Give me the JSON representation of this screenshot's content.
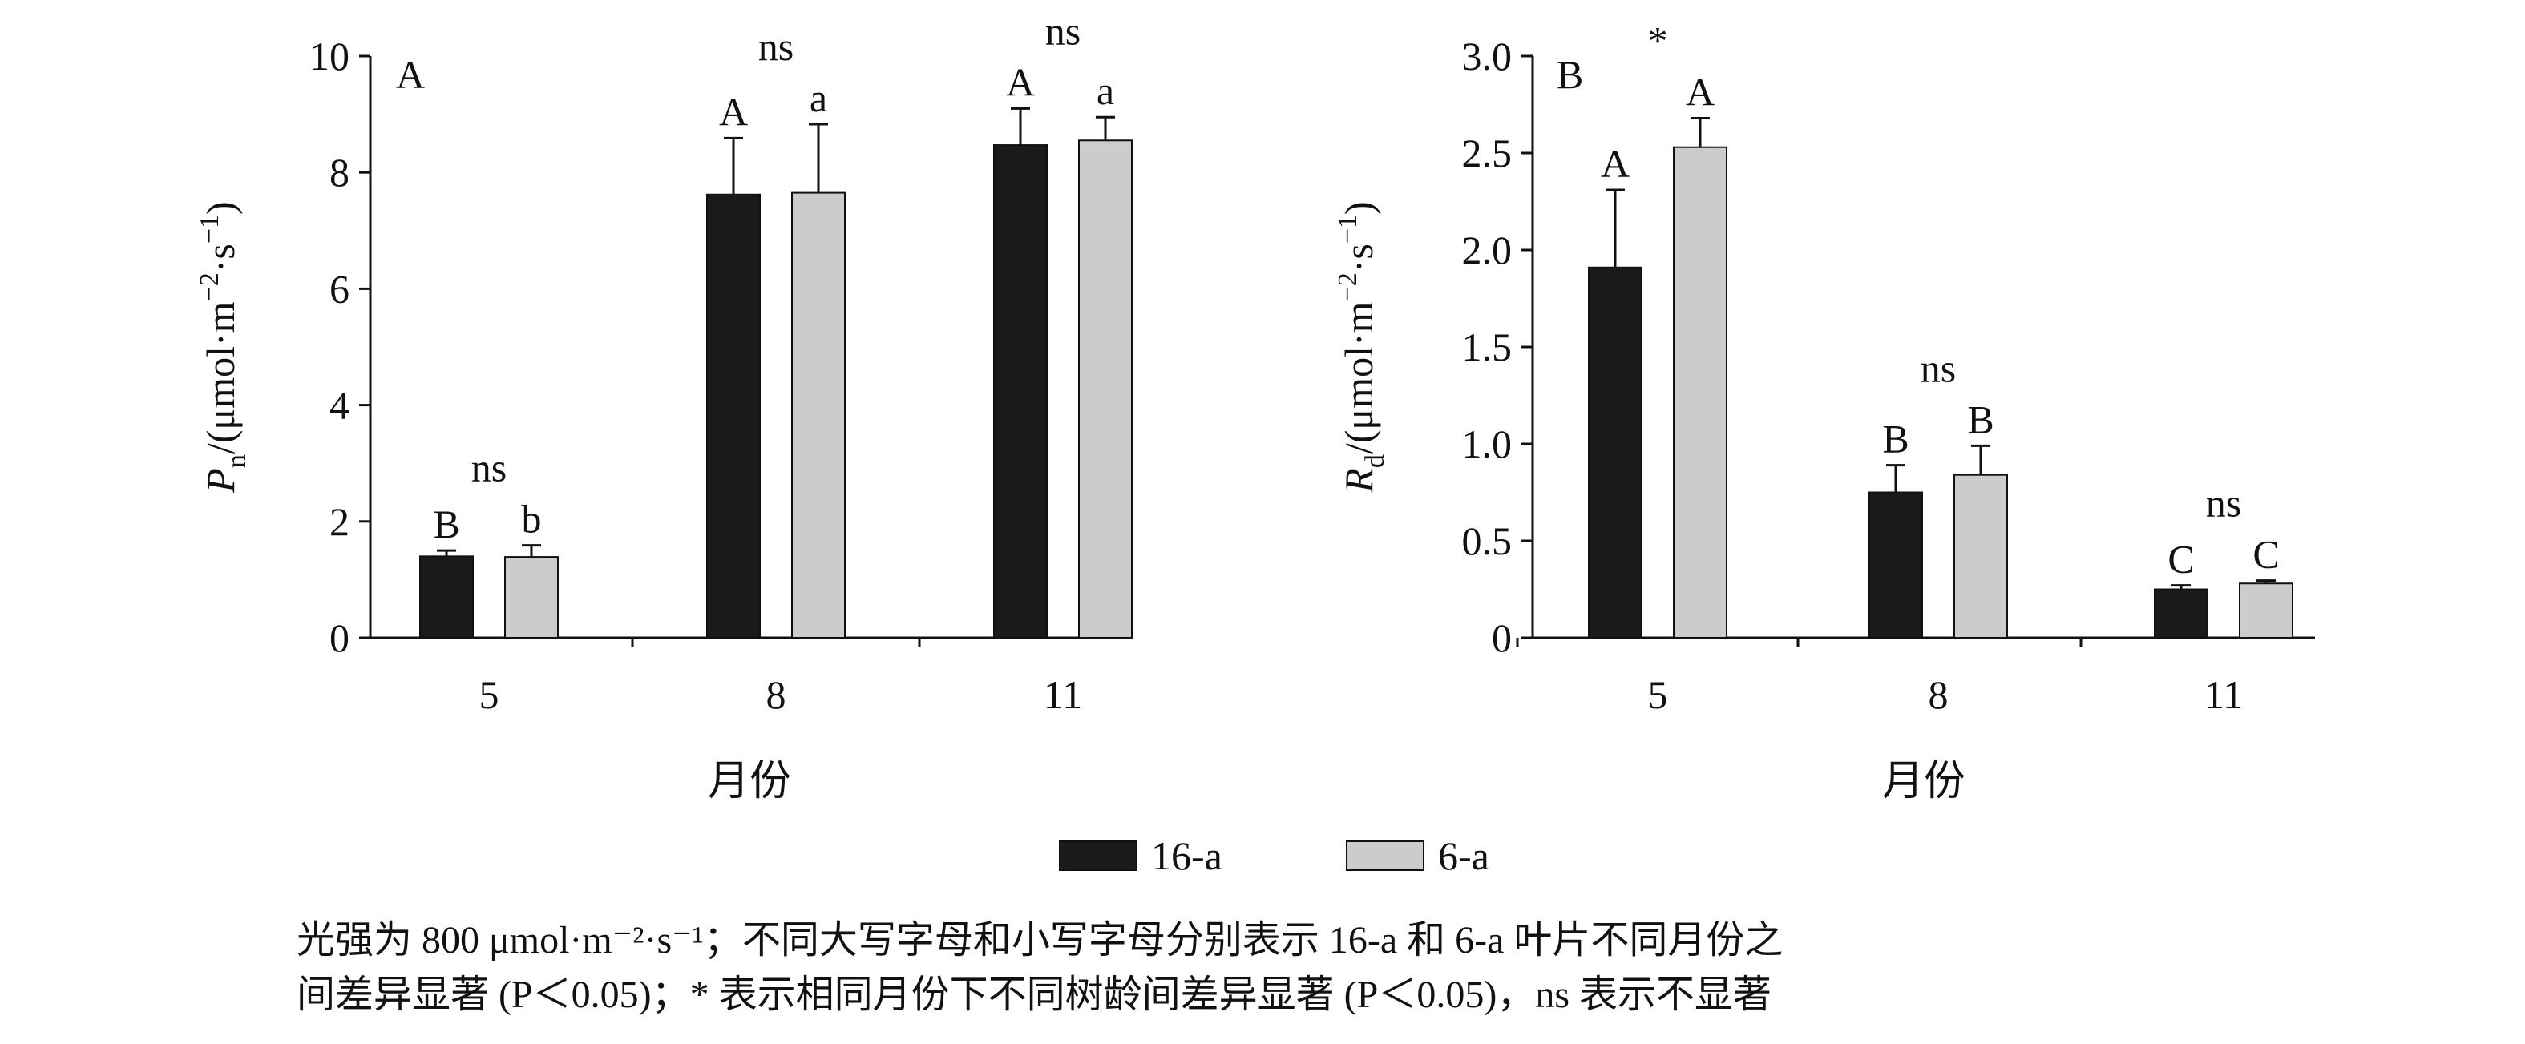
{
  "chart_data": [
    {
      "type": "bar",
      "panel_label": "A",
      "categories": [
        "5",
        "8",
        "11"
      ],
      "series": [
        {
          "name": "16-a",
          "values": [
            1.4,
            7.62,
            8.47
          ],
          "errors": [
            0.1,
            0.97,
            0.63
          ],
          "letters": [
            "B",
            "A",
            "A"
          ]
        },
        {
          "name": "6-a",
          "values": [
            1.39,
            7.65,
            8.55
          ],
          "errors": [
            0.2,
            1.18,
            0.4
          ],
          "letters": [
            "b",
            "a",
            "a"
          ]
        }
      ],
      "group_significance": [
        "ns",
        "ns",
        "ns"
      ],
      "ylabel_main": "P",
      "ylabel_sub": "n",
      "ylabel_rest": "/(μmol·m",
      "ylabel_sup1": "−2",
      "ylabel_mid": "·s",
      "ylabel_sup2": "−1",
      "ylabel_end": ")",
      "xlabel": "月份",
      "ylim": [
        0,
        10
      ],
      "yticks": [
        0,
        2,
        4,
        6,
        8,
        10
      ],
      "ytick_labels": [
        "0",
        "2",
        "4",
        "6",
        "8",
        "10"
      ],
      "grid": false
    },
    {
      "type": "bar",
      "panel_label": "B",
      "categories": [
        "5",
        "8",
        "11"
      ],
      "series": [
        {
          "name": "16-a",
          "values": [
            1.91,
            0.75,
            0.25
          ],
          "errors": [
            0.4,
            0.14,
            0.02
          ],
          "letters": [
            "A",
            "B",
            "C"
          ]
        },
        {
          "name": "6-a",
          "values": [
            2.53,
            0.84,
            0.28
          ],
          "errors": [
            0.15,
            0.15,
            0.015
          ],
          "letters": [
            "A",
            "B",
            "C"
          ]
        }
      ],
      "group_significance": [
        "*",
        "ns",
        "ns"
      ],
      "ylabel_main": "R",
      "ylabel_sub": "d",
      "ylabel_rest": "/(μmol·m",
      "ylabel_sup1": "−2",
      "ylabel_mid": "·s",
      "ylabel_sup2": "−1",
      "ylabel_end": ")",
      "xlabel": "月份",
      "ylim": [
        0,
        3.0
      ],
      "yticks": [
        0,
        0.5,
        1.0,
        1.5,
        2.0,
        2.5,
        3.0
      ],
      "ytick_labels": [
        "0",
        "0.5",
        "1.0",
        "1.5",
        "2.0",
        "2.5",
        "3.0"
      ],
      "grid": false
    }
  ],
  "legend": {
    "placement": "bottom-center",
    "items": [
      {
        "label": "16-a",
        "color": "#1a1a1a"
      },
      {
        "label": "6-a",
        "color": "#cccccc"
      }
    ]
  },
  "caption": {
    "line1": "光强为 800 μmol·m⁻²·s⁻¹；不同大写字母和小写字母分别表示 16-a 和 6-a 叶片不同月份之",
    "line2": "间差异显著 (P＜0.05)；* 表示相同月份下不同树龄间差异显著 (P＜0.05)，ns 表示不显著"
  },
  "colors": {
    "series_dark": "#1a1a1a",
    "series_light": "#cccccc",
    "axis": "#111111"
  }
}
